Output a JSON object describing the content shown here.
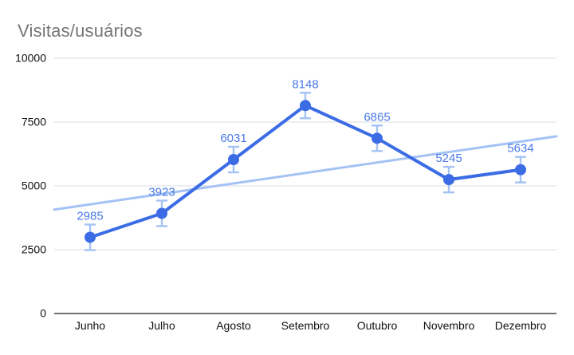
{
  "chart_data": {
    "type": "line",
    "title": "Visitas/usuários",
    "categories": [
      "Junho",
      "Julho",
      "Agosto",
      "Setembro",
      "Outubro",
      "Novembro",
      "Dezembro"
    ],
    "series": [
      {
        "name": "Visitas/usuários",
        "values": [
          2985,
          3923,
          6031,
          8148,
          6865,
          5245,
          5634
        ]
      }
    ],
    "show_data_labels": true,
    "error_bars": {
      "type": "constant",
      "magnitude": 500
    },
    "trendline": {
      "type": "linear",
      "start_value": 4070,
      "end_value": 6940
    },
    "xlabel": "",
    "ylabel": "",
    "ylim": [
      0,
      10000
    ],
    "yticks": [
      0,
      2500,
      5000,
      7500,
      10000
    ],
    "grid": true,
    "legend_position": "none"
  },
  "colors": {
    "background": "#ffffff",
    "title": "#757575",
    "series": "#3b6ce5",
    "data_label": "#4a79e8",
    "trendline": "#a4c2f4",
    "error_bar": "#a4c2f4",
    "gridline": "#dadce0",
    "axis_line": "#424242",
    "tick_label": "#111111"
  }
}
